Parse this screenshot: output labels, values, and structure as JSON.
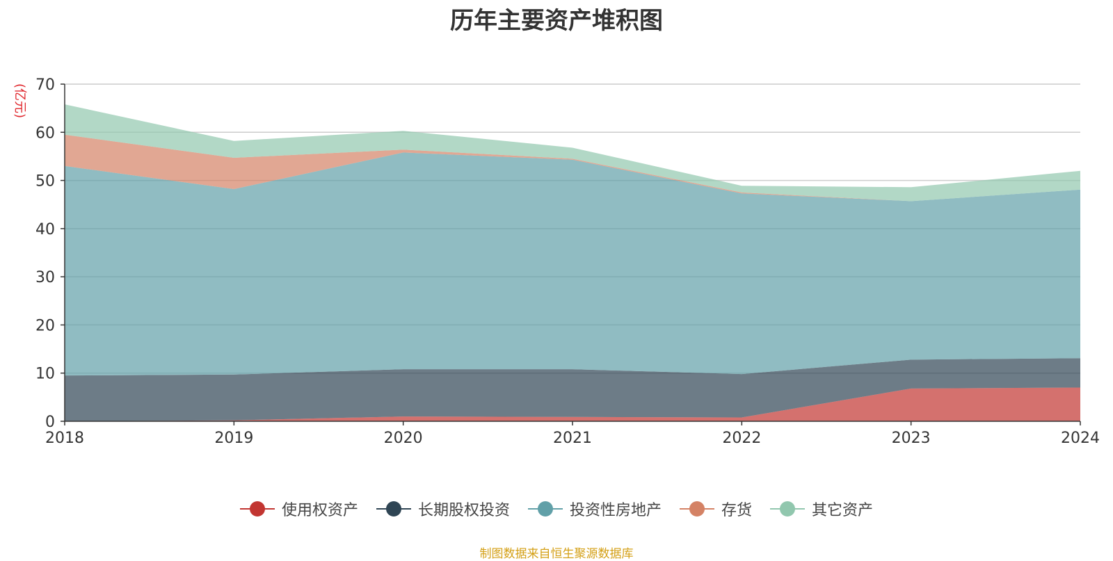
{
  "chart_data": {
    "type": "area",
    "stacked": true,
    "title": "历年主要资产堆积图",
    "ylabel": "(亿元)",
    "xlabel": "",
    "x": [
      "2018",
      "2019",
      "2020",
      "2021",
      "2022",
      "2023",
      "2024"
    ],
    "ylim": [
      0,
      70
    ],
    "yticks": [
      0,
      10,
      20,
      30,
      40,
      50,
      60,
      70
    ],
    "grid": true,
    "legend_position": "bottom",
    "series": [
      {
        "name": "使用权资产",
        "color": "#c23531",
        "values": [
          0.0,
          0.2,
          1.0,
          0.9,
          0.8,
          6.8,
          7.0
        ]
      },
      {
        "name": "长期股权投资",
        "color": "#2f4554",
        "values": [
          9.5,
          9.5,
          9.8,
          9.9,
          9.0,
          6.0,
          6.1
        ]
      },
      {
        "name": "投资性房地产",
        "color": "#61a0a8",
        "values": [
          43.5,
          38.5,
          45.0,
          43.5,
          37.5,
          32.9,
          35.0
        ]
      },
      {
        "name": "存货",
        "color": "#d48265",
        "values": [
          6.5,
          6.5,
          0.6,
          0.2,
          0.2,
          0.0,
          0.0
        ]
      },
      {
        "name": "其它资产",
        "color": "#91c7ae",
        "values": [
          6.3,
          3.5,
          3.9,
          2.3,
          1.4,
          2.9,
          3.9
        ]
      }
    ]
  },
  "source_note": "制图数据来自恒生聚源数据库"
}
